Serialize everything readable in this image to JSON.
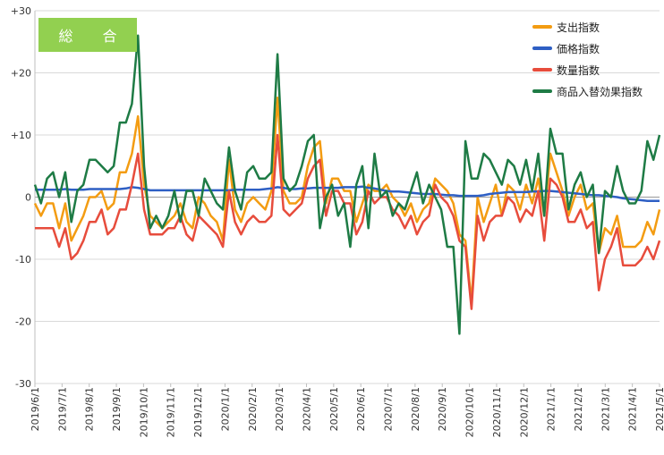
{
  "panel_label": "総 合",
  "chart_data": {
    "type": "line",
    "title": "",
    "xlabel": "",
    "ylabel": "",
    "ylim": [
      -30,
      30
    ],
    "y_ticks": [
      "+30",
      "+20",
      "+10",
      "0",
      "-10",
      "-20",
      "-30"
    ],
    "grid": true,
    "legend_position": "top-right",
    "x_start": "2019-06-01",
    "x_end": "2021-05-01",
    "x_tick_labels": [
      "2019/6/1",
      "2019/7/1",
      "2019/8/1",
      "2019/9/1",
      "2019/10/1",
      "2019/11/1",
      "2019/12/1",
      "2020/1/1",
      "2020/2/1",
      "2020/3/1",
      "2020/4/1",
      "2020/5/1",
      "2020/6/1",
      "2020/7/1",
      "2020/8/1",
      "2020/9/1",
      "2020/10/1",
      "2020/11/1",
      "2020/12/1",
      "2021/1/1",
      "2021/2/1",
      "2021/3/1",
      "2021/4/1",
      "2021/5/1"
    ],
    "series": [
      {
        "name": "支出指数",
        "color": "#f39c12",
        "values": [
          -1,
          -3,
          -1,
          -1,
          -5,
          -1,
          -7,
          -5,
          -3,
          0,
          0,
          1,
          -2,
          -1,
          4,
          4,
          7,
          13,
          2,
          -3,
          -4,
          -5,
          -4,
          -3,
          -1,
          -4,
          -5,
          0,
          -1,
          -3,
          -4,
          -7,
          6,
          -2,
          -4,
          -1,
          0,
          -1,
          -2,
          1,
          16,
          1,
          -1,
          -1,
          0,
          5,
          8,
          9,
          -1,
          3,
          3,
          1,
          1,
          -4,
          -1,
          2,
          1,
          1,
          2,
          0,
          -1,
          -3,
          -1,
          -4,
          -2,
          -1,
          3,
          2,
          1,
          -1,
          -6,
          -7,
          -17,
          0,
          -4,
          -1,
          2,
          -3,
          2,
          1,
          -2,
          2,
          -1,
          3,
          -3,
          7,
          4,
          1,
          -3,
          0,
          2,
          -2,
          -1,
          -9,
          -5,
          -6,
          -3,
          -8,
          -8,
          -8,
          -7,
          -4,
          -6,
          -2
        ]
      },
      {
        "name": "価格指数",
        "color": "#2e5fc4",
        "values": [
          1.2,
          1.2,
          1.2,
          1.2,
          1.2,
          1.3,
          1.2,
          1.2,
          1.2,
          1.3,
          1.3,
          1.3,
          1.3,
          1.3,
          1.3,
          1.4,
          1.6,
          1.5,
          1.3,
          1.1,
          1.1,
          1.1,
          1.1,
          1.1,
          1.1,
          1.1,
          1.1,
          1.1,
          1.1,
          1.1,
          1.1,
          1.1,
          1.1,
          1.2,
          1.2,
          1.2,
          1.2,
          1.2,
          1.3,
          1.4,
          1.6,
          1.5,
          1.3,
          1.3,
          1.4,
          1.4,
          1.5,
          1.5,
          1.5,
          1.5,
          1.5,
          1.6,
          1.6,
          1.6,
          1.7,
          1.5,
          1.4,
          1.2,
          1.0,
          0.9,
          0.9,
          0.8,
          0.7,
          0.6,
          0.5,
          0.5,
          0.5,
          0.4,
          0.3,
          0.3,
          0.2,
          0.2,
          0.2,
          0.2,
          0.3,
          0.5,
          0.6,
          0.7,
          0.8,
          0.8,
          0.8,
          0.8,
          0.9,
          0.9,
          1.0,
          1.0,
          0.9,
          0.8,
          0.7,
          0.6,
          0.5,
          0.4,
          0.3,
          0.3,
          0.2,
          0.1,
          0.0,
          -0.2,
          -0.3,
          -0.4,
          -0.5,
          -0.6,
          -0.6,
          -0.6
        ]
      },
      {
        "name": "数量指数",
        "color": "#e74c3c",
        "values": [
          -5,
          -5,
          -5,
          -5,
          -8,
          -5,
          -10,
          -9,
          -7,
          -4,
          -4,
          -2,
          -6,
          -5,
          -2,
          -2,
          2,
          7,
          -2,
          -6,
          -6,
          -6,
          -5,
          -5,
          -3,
          -6,
          -7,
          -3,
          -4,
          -5,
          -6,
          -8,
          1,
          -4,
          -6,
          -4,
          -3,
          -4,
          -4,
          -3,
          10,
          -2,
          -3,
          -2,
          -1,
          3,
          5,
          6,
          -3,
          1,
          1,
          -1,
          -1,
          -6,
          -4,
          1,
          -1,
          0,
          0,
          -2,
          -3,
          -5,
          -3,
          -6,
          -4,
          -3,
          2,
          0,
          -1,
          -3,
          -7,
          -8,
          -18,
          -3,
          -7,
          -4,
          -3,
          -3,
          0,
          -1,
          -4,
          -2,
          -3,
          1,
          -7,
          3,
          2,
          0,
          -4,
          -4,
          -2,
          -5,
          -4,
          -15,
          -10,
          -8,
          -5,
          -11,
          -11,
          -11,
          -10,
          -8,
          -10,
          -7
        ]
      },
      {
        "name": "商品入替効果指数",
        "color": "#1e7b45",
        "values": [
          2,
          -1,
          3,
          4,
          0,
          4,
          -4,
          1,
          2,
          6,
          6,
          5,
          4,
          5,
          12,
          12,
          15,
          26,
          5,
          -5,
          -3,
          -5,
          -3,
          1,
          -4,
          1,
          1,
          -3,
          3,
          1,
          -1,
          -2,
          8,
          1,
          -2,
          4,
          5,
          3,
          3,
          4,
          23,
          3,
          1,
          2,
          5,
          9,
          10,
          -5,
          0,
          2,
          -3,
          -1,
          -8,
          2,
          5,
          -5,
          7,
          0,
          1,
          -3,
          -1,
          -2,
          1,
          4,
          -1,
          2,
          0,
          -2,
          -8,
          -8,
          -22,
          9,
          3,
          3,
          7,
          6,
          4,
          2,
          6,
          5,
          2,
          6,
          1,
          7,
          -3,
          11,
          7,
          7,
          -2,
          2,
          4,
          0,
          2,
          -9,
          1,
          0,
          5,
          1,
          -1,
          -1,
          1,
          9,
          6,
          10
        ]
      }
    ]
  }
}
